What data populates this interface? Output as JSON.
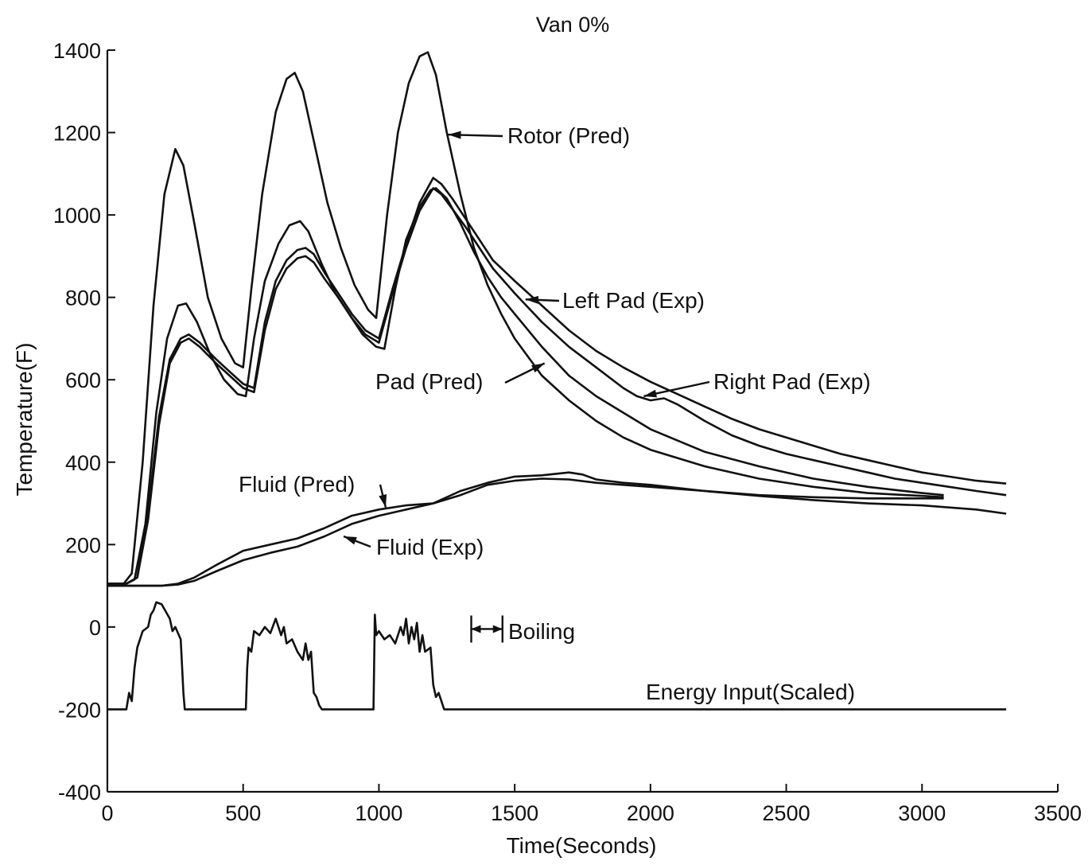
{
  "chart_data": {
    "type": "line",
    "title": "Van 0%",
    "xlabel": "Time(Seconds)",
    "ylabel": "Temperature(F)",
    "xlim": [
      0,
      3500
    ],
    "ylim": [
      -400,
      1400
    ],
    "xticks": [
      0,
      500,
      1000,
      1500,
      2000,
      2500,
      3000,
      3500
    ],
    "yticks": [
      -400,
      -200,
      0,
      200,
      400,
      600,
      800,
      1000,
      1200,
      1400
    ],
    "grid": false,
    "legend": "none",
    "series": [
      {
        "name": "Rotor (Pred)",
        "x": [
          0,
          60,
          90,
          130,
          170,
          210,
          250,
          280,
          320,
          370,
          420,
          470,
          500,
          530,
          570,
          620,
          660,
          690,
          720,
          760,
          810,
          860,
          910,
          960,
          990,
          1030,
          1070,
          1110,
          1150,
          1180,
          1210,
          1250,
          1300,
          1350,
          1400,
          1450,
          1500,
          1600,
          1700,
          1800,
          1900,
          2000,
          2200,
          2400,
          2600,
          2800,
          3000,
          3080
        ],
        "y": [
          105,
          105,
          130,
          400,
          780,
          1050,
          1160,
          1120,
          980,
          800,
          700,
          640,
          630,
          820,
          1050,
          1250,
          1330,
          1345,
          1300,
          1180,
          1030,
          920,
          830,
          770,
          750,
          1000,
          1200,
          1320,
          1385,
          1395,
          1340,
          1200,
          1050,
          920,
          830,
          760,
          700,
          610,
          550,
          500,
          460,
          430,
          390,
          360,
          340,
          325,
          318,
          315
        ]
      },
      {
        "name": "Pad (Pred)",
        "x": [
          0,
          70,
          100,
          140,
          180,
          220,
          260,
          290,
          330,
          380,
          430,
          480,
          510,
          540,
          580,
          630,
          670,
          710,
          740,
          790,
          840,
          890,
          940,
          990,
          1020,
          1060,
          1100,
          1150,
          1190,
          1210,
          1250,
          1300,
          1350,
          1400,
          1450,
          1500,
          1600,
          1700,
          1800,
          1900,
          2000,
          2200,
          2400,
          2600,
          2800,
          3000,
          3080
        ],
        "y": [
          105,
          105,
          115,
          250,
          520,
          700,
          780,
          785,
          740,
          660,
          600,
          565,
          560,
          700,
          840,
          930,
          975,
          985,
          960,
          880,
          810,
          760,
          710,
          680,
          675,
          820,
          940,
          1020,
          1060,
          1065,
          1040,
          980,
          910,
          850,
          800,
          760,
          680,
          610,
          560,
          520,
          480,
          425,
          390,
          360,
          340,
          325,
          320
        ]
      },
      {
        "name": "Left Pad (Exp)",
        "x": [
          0,
          70,
          110,
          150,
          190,
          230,
          270,
          300,
          340,
          400,
          450,
          500,
          540,
          580,
          620,
          660,
          700,
          730,
          760,
          800,
          850,
          900,
          950,
          1000,
          1050,
          1100,
          1150,
          1200,
          1230,
          1270,
          1320,
          1370,
          1420,
          1500,
          1600,
          1700,
          1800,
          1900,
          2000,
          2100,
          2200,
          2300,
          2400,
          2500,
          2600,
          2700,
          2800,
          2900,
          3000,
          3100,
          3200,
          3310
        ],
        "y": [
          105,
          105,
          120,
          280,
          510,
          650,
          700,
          710,
          690,
          650,
          620,
          590,
          580,
          740,
          840,
          890,
          915,
          920,
          905,
          860,
          810,
          760,
          720,
          700,
          820,
          930,
          1030,
          1090,
          1075,
          1040,
          990,
          940,
          890,
          840,
          780,
          720,
          670,
          630,
          595,
          565,
          535,
          505,
          480,
          460,
          440,
          420,
          405,
          390,
          375,
          365,
          355,
          348
        ]
      },
      {
        "name": "Right Pad (Exp)",
        "x": [
          0,
          70,
          110,
          150,
          190,
          230,
          270,
          300,
          340,
          400,
          450,
          500,
          540,
          580,
          620,
          660,
          700,
          730,
          760,
          800,
          850,
          900,
          950,
          1000,
          1050,
          1100,
          1150,
          1200,
          1230,
          1270,
          1320,
          1370,
          1420,
          1500,
          1600,
          1700,
          1800,
          1900,
          1950,
          2000,
          2050,
          2100,
          2200,
          2300,
          2400,
          2500,
          2600,
          2700,
          2800,
          2900,
          3000,
          3100,
          3200,
          3310
        ],
        "y": [
          105,
          105,
          120,
          260,
          490,
          640,
          690,
          700,
          680,
          640,
          610,
          580,
          570,
          720,
          820,
          870,
          895,
          900,
          885,
          845,
          800,
          750,
          710,
          690,
          810,
          920,
          1010,
          1065,
          1050,
          1015,
          970,
          920,
          870,
          810,
          740,
          680,
          630,
          580,
          560,
          550,
          555,
          540,
          500,
          465,
          440,
          420,
          405,
          390,
          375,
          360,
          350,
          340,
          330,
          320
        ]
      },
      {
        "name": "Fluid (Pred)",
        "x": [
          0,
          200,
          260,
          320,
          400,
          500,
          600,
          700,
          800,
          900,
          1000,
          1100,
          1200,
          1300,
          1400,
          1500,
          1600,
          1700,
          1800,
          1900,
          2000,
          2200,
          2400,
          2600,
          2800,
          3000,
          3080
        ],
        "y": [
          100,
          100,
          105,
          120,
          150,
          185,
          200,
          215,
          240,
          270,
          285,
          295,
          300,
          320,
          345,
          355,
          360,
          358,
          350,
          345,
          340,
          330,
          320,
          315,
          312,
          312,
          312
        ]
      },
      {
        "name": "Fluid (Exp)",
        "x": [
          0,
          200,
          260,
          320,
          400,
          500,
          600,
          700,
          800,
          900,
          1000,
          1100,
          1200,
          1300,
          1400,
          1500,
          1600,
          1700,
          1750,
          1800,
          1900,
          2000,
          2200,
          2400,
          2600,
          2800,
          3000,
          3200,
          3310
        ],
        "y": [
          100,
          100,
          103,
          112,
          135,
          162,
          180,
          195,
          220,
          250,
          270,
          285,
          300,
          330,
          350,
          365,
          368,
          375,
          370,
          358,
          350,
          345,
          330,
          318,
          308,
          300,
          295,
          285,
          275
        ]
      },
      {
        "name": "Energy Input(Scaled)",
        "x": [
          0,
          60,
          70,
          80,
          90,
          100,
          110,
          130,
          150,
          160,
          170,
          180,
          200,
          230,
          240,
          250,
          270,
          280,
          285,
          300,
          330,
          350,
          500,
          510,
          515,
          520,
          530,
          540,
          560,
          580,
          600,
          620,
          640,
          650,
          660,
          680,
          700,
          720,
          730,
          740,
          750,
          760,
          770,
          780,
          790,
          800,
          970,
          980,
          985,
          990,
          1000,
          1020,
          1040,
          1060,
          1080,
          1090,
          1100,
          1110,
          1120,
          1130,
          1140,
          1150,
          1160,
          1170,
          1190,
          1200,
          1210,
          1220,
          1230,
          1240,
          1250,
          3310
        ],
        "y": [
          -200,
          -200,
          -200,
          -160,
          -180,
          -100,
          -50,
          -10,
          0,
          30,
          40,
          60,
          55,
          20,
          -10,
          0,
          -30,
          -160,
          -200,
          -200,
          -200,
          -200,
          -200,
          -200,
          -100,
          -50,
          -60,
          -10,
          -20,
          0,
          -15,
          20,
          -20,
          0,
          -40,
          -30,
          -60,
          -80,
          -40,
          -80,
          -60,
          -160,
          -170,
          -190,
          -200,
          -200,
          -200,
          -200,
          30,
          -20,
          -10,
          -30,
          -20,
          -40,
          0,
          -20,
          20,
          -40,
          0,
          -30,
          10,
          -60,
          -20,
          -60,
          -50,
          -140,
          -170,
          -160,
          -180,
          -200,
          -200,
          -200
        ]
      }
    ],
    "annotations": [
      {
        "text": "Rotor (Pred)",
        "arrow_to": [
          1255,
          1195
        ]
      },
      {
        "text": "Left Pad (Exp)",
        "arrow_to": [
          1540,
          795
        ]
      },
      {
        "text": "Pad (Pred)",
        "arrow_to": [
          1610,
          640
        ]
      },
      {
        "text": "Right Pad (Exp)",
        "arrow_to": [
          1975,
          560
        ]
      },
      {
        "text": "Fluid (Pred)",
        "arrow_to": [
          1025,
          290
        ]
      },
      {
        "text": "Fluid (Exp)",
        "arrow_to": [
          870,
          220
        ]
      },
      {
        "text": "Boiling",
        "span": [
          1340,
          1455
        ],
        "y": -5
      },
      {
        "text": "Energy Input(Scaled)"
      }
    ]
  }
}
